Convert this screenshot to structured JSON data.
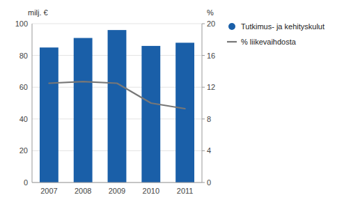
{
  "chart_data": {
    "type": "bar",
    "categories": [
      "2007",
      "2008",
      "2009",
      "2010",
      "2011"
    ],
    "ylabel": "milj. €",
    "y2label": "%",
    "series": [
      {
        "name": "Tutkimus- ja kehityskulut",
        "type": "bar",
        "color": "#1a5fa8",
        "values": [
          85,
          91,
          96,
          86,
          88
        ]
      },
      {
        "name": "% liikevaihdosta",
        "type": "line",
        "color": "#777777",
        "axis": "y2",
        "values": [
          12.5,
          12.7,
          12.5,
          10.0,
          9.3
        ]
      }
    ],
    "ylim": [
      0,
      100
    ],
    "yticks": [
      0,
      20,
      40,
      60,
      80,
      100
    ],
    "y2lim": [
      0,
      20
    ],
    "y2ticks": [
      0,
      4,
      8,
      12,
      16,
      20
    ],
    "grid": true,
    "legend": "right"
  }
}
